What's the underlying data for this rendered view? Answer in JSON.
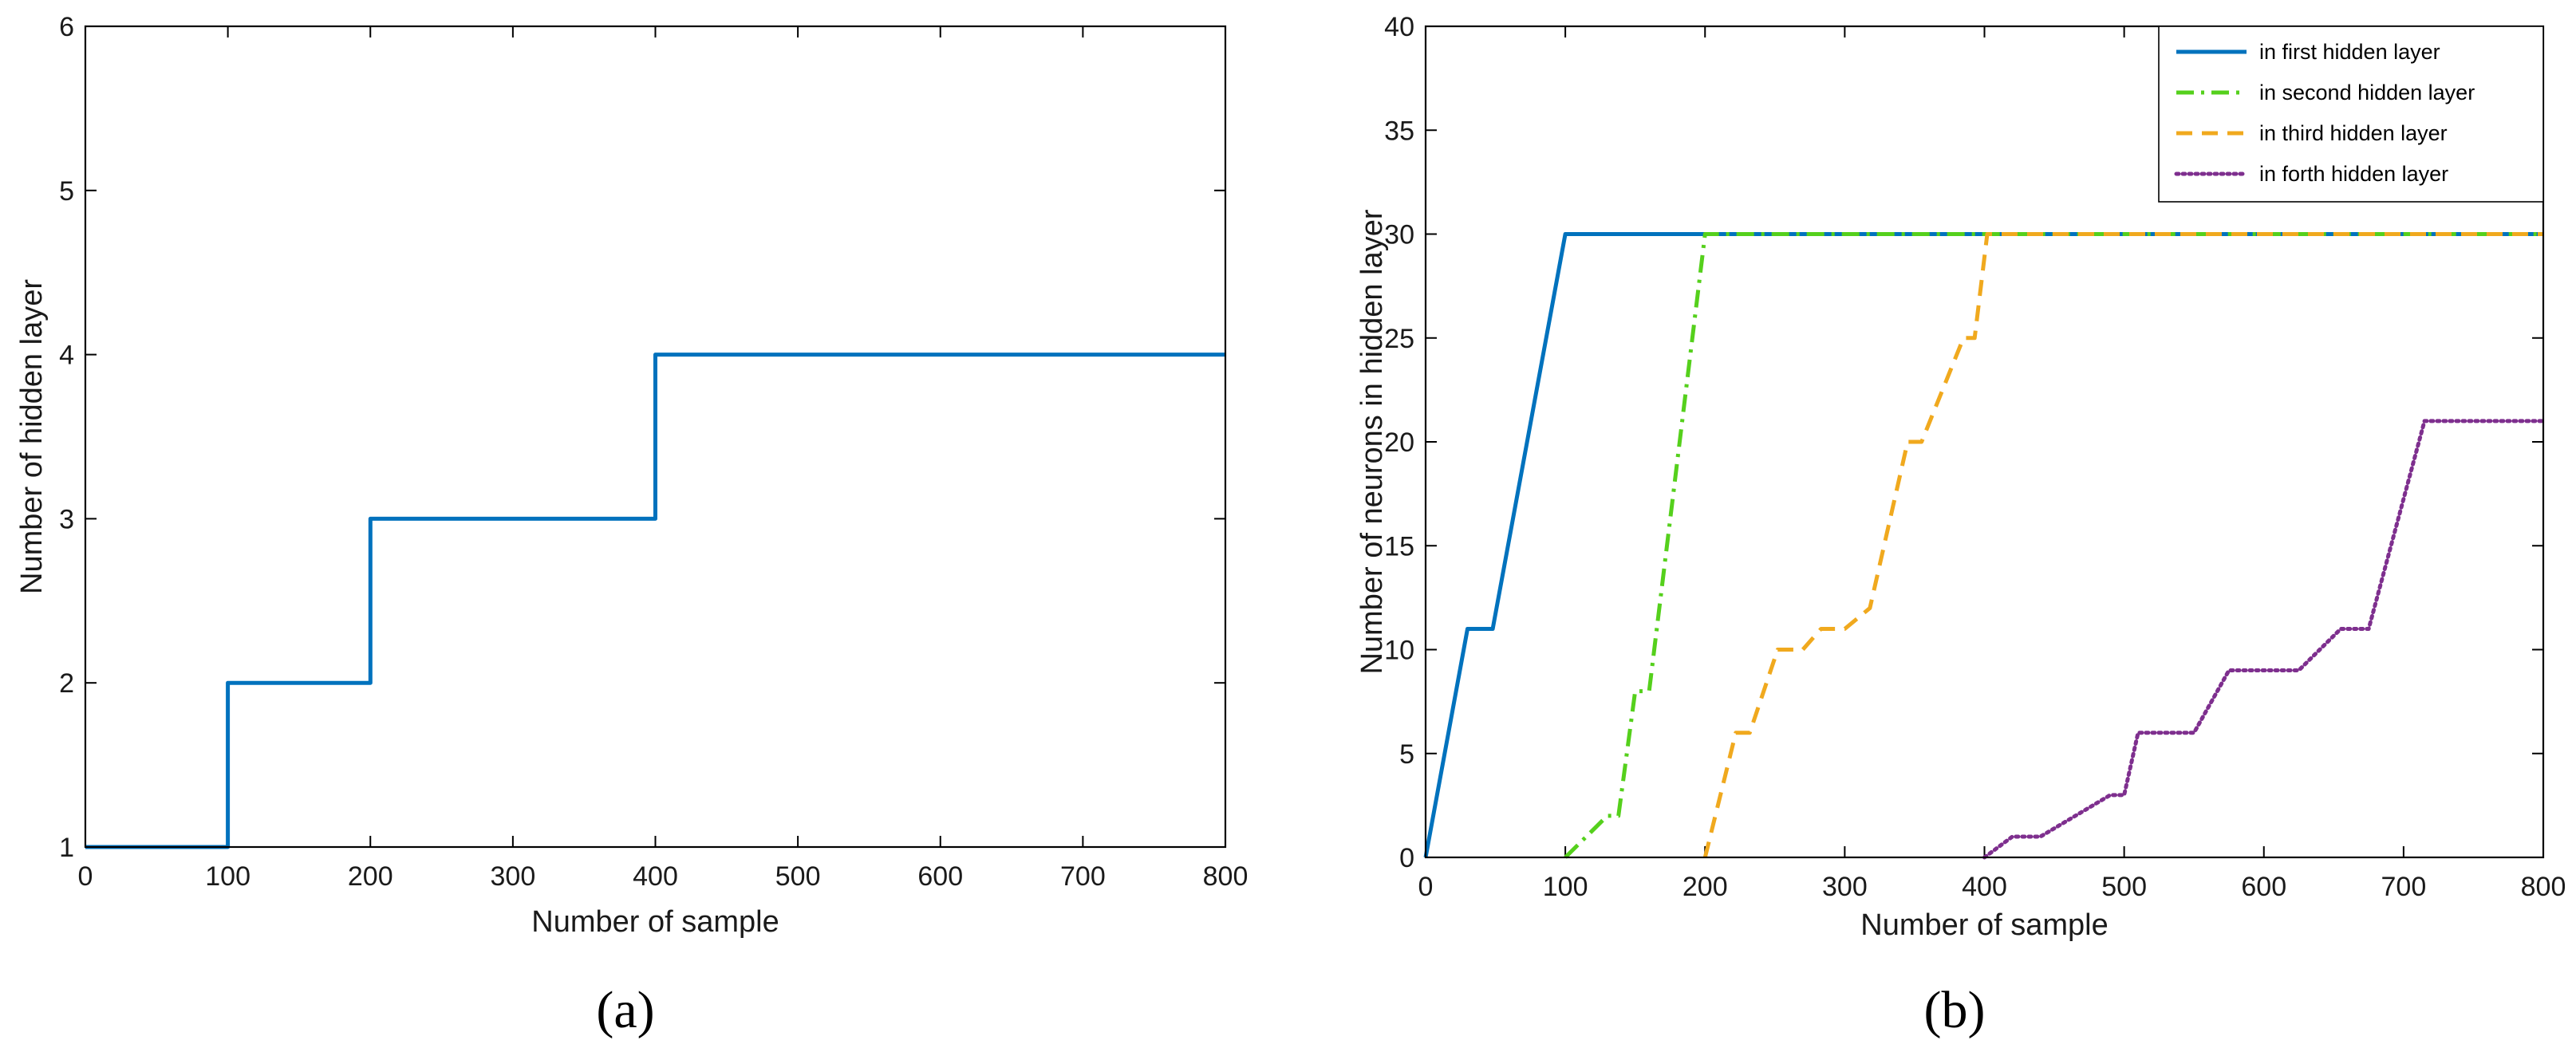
{
  "chart_data": [
    {
      "type": "line",
      "panel_label": "(a)",
      "title": "",
      "xlabel": "Number of sample",
      "ylabel": "Number of hidden layer",
      "xlim": [
        0,
        800
      ],
      "ylim": [
        1,
        6
      ],
      "xticks": [
        0,
        100,
        200,
        300,
        400,
        500,
        600,
        700,
        800
      ],
      "yticks": [
        1,
        2,
        3,
        4,
        5,
        6
      ],
      "grid": false,
      "series": [
        {
          "color": "#0072BD",
          "dash": "solid",
          "x": [
            0,
            100,
            100,
            200,
            200,
            400,
            400,
            800
          ],
          "y": [
            1,
            1,
            2,
            2,
            3,
            3,
            4,
            4
          ]
        }
      ]
    },
    {
      "type": "line",
      "panel_label": "(b)",
      "title": "",
      "xlabel": "Number of sample",
      "ylabel": "Number of neurons in hidden layer",
      "xlim": [
        0,
        800
      ],
      "ylim": [
        0,
        40
      ],
      "xticks": [
        0,
        100,
        200,
        300,
        400,
        500,
        600,
        700,
        800
      ],
      "yticks": [
        0,
        5,
        10,
        15,
        20,
        25,
        30,
        35,
        40
      ],
      "grid": false,
      "legend_position": "top-right",
      "series": [
        {
          "name": "in first hidden layer",
          "color": "#0072BD",
          "dash": "solid",
          "x": [
            0,
            30,
            35,
            48,
            100,
            800
          ],
          "y": [
            0,
            11,
            11,
            11,
            30,
            30
          ]
        },
        {
          "name": "in second hidden layer",
          "color": "#55D01C",
          "dash": "dashdot",
          "x": [
            100,
            130,
            138,
            150,
            160,
            200,
            800
          ],
          "y": [
            0,
            2,
            2,
            8,
            8,
            30,
            30
          ]
        },
        {
          "name": "in third hidden layer",
          "color": "#F0A91E",
          "dash": "dashed",
          "x": [
            200,
            222,
            232,
            252,
            270,
            283,
            300,
            318,
            345,
            355,
            385,
            393,
            402,
            800
          ],
          "y": [
            0,
            6,
            6,
            10,
            10,
            11,
            11,
            12,
            20,
            20,
            25,
            25,
            30,
            30
          ]
        },
        {
          "name": "in forth hidden layer",
          "color": "#7E2F8E",
          "dash": "dotted",
          "x": [
            400,
            420,
            440,
            490,
            500,
            510,
            550,
            575,
            625,
            655,
            675,
            715,
            800
          ],
          "y": [
            0,
            1,
            1,
            3,
            3,
            6,
            6,
            9,
            9,
            11,
            11,
            21,
            21
          ]
        }
      ]
    }
  ]
}
